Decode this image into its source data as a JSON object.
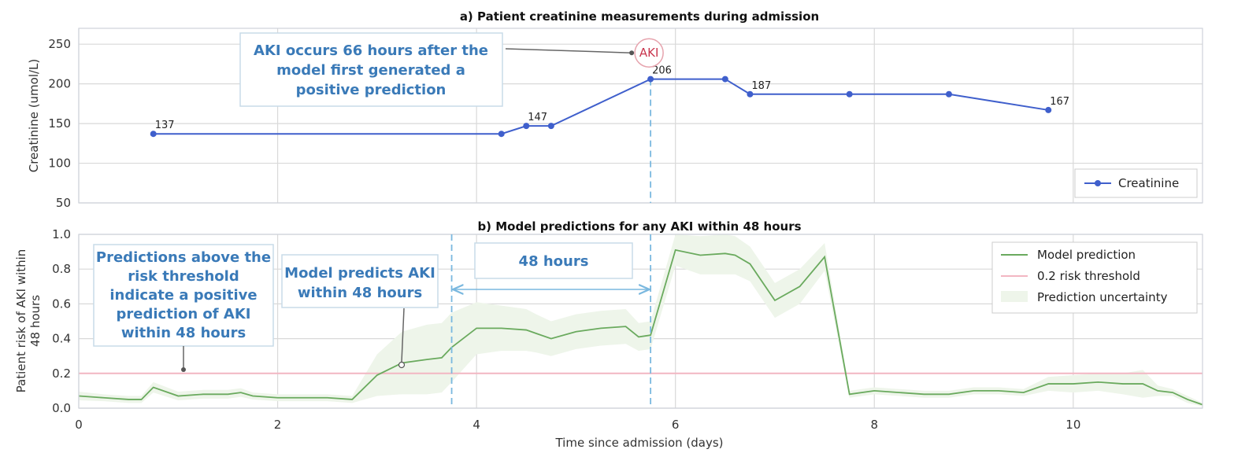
{
  "chart_data": [
    {
      "type": "line",
      "title": "a) Patient creatinine measurements during admission",
      "ylabel": "Creatinine (umol/L)",
      "xlim": [
        0,
        11.3
      ],
      "ylim": [
        50,
        270
      ],
      "yticks": [
        50,
        100,
        150,
        200,
        250
      ],
      "grid": true,
      "legend_position": "bottom-right",
      "series": [
        {
          "name": "Creatinine",
          "color": "#3f5fcc",
          "x": [
            0.75,
            4.25,
            4.5,
            4.75,
            5.75,
            6.5,
            6.75,
            7.75,
            8.75,
            9.75
          ],
          "y": [
            137,
            137,
            147,
            147,
            206,
            206,
            187,
            187,
            187,
            167
          ]
        }
      ],
      "point_labels": [
        {
          "x": 0.75,
          "y": 137,
          "text": "137"
        },
        {
          "x": 4.5,
          "y": 147,
          "text": "147"
        },
        {
          "x": 5.75,
          "y": 206,
          "text": "206"
        },
        {
          "x": 6.75,
          "y": 187,
          "text": "187"
        },
        {
          "x": 9.75,
          "y": 167,
          "text": "167"
        }
      ],
      "aki_marker": {
        "x": 5.75,
        "y": 247,
        "text": "AKI"
      },
      "annotation_text": [
        "AKI occurs 66 hours after the",
        "model first generated a",
        "positive prediction"
      ]
    },
    {
      "type": "line",
      "title": "b) Model predictions for any AKI within 48 hours",
      "ylabel": [
        "Patient risk of AKI within",
        "48 hours"
      ],
      "xlabel": "Time since admission (days)",
      "xlim": [
        0,
        11.3
      ],
      "ylim": [
        0,
        1.0
      ],
      "xticks": [
        0,
        2,
        4,
        6,
        8,
        10
      ],
      "yticks": [
        0.0,
        0.2,
        0.4,
        0.6,
        0.8,
        1.0
      ],
      "grid": true,
      "legend_position": "top-right",
      "series": [
        {
          "name": "Model prediction",
          "color": "#6aaa5e",
          "x": [
            0,
            0.25,
            0.5,
            0.63,
            0.75,
            1.0,
            1.25,
            1.5,
            1.63,
            1.75,
            2.0,
            2.25,
            2.5,
            2.75,
            3.0,
            3.25,
            3.5,
            3.65,
            3.75,
            4.0,
            4.25,
            4.5,
            4.6,
            4.75,
            5.0,
            5.25,
            5.5,
            5.63,
            5.75,
            6.0,
            6.25,
            6.5,
            6.6,
            6.75,
            7.0,
            7.25,
            7.5,
            7.75,
            8.0,
            8.25,
            8.5,
            8.75,
            9.0,
            9.25,
            9.5,
            9.75,
            10.0,
            10.25,
            10.5,
            10.7,
            10.85,
            11.0,
            11.15,
            11.3
          ],
          "y": [
            0.07,
            0.06,
            0.05,
            0.05,
            0.12,
            0.07,
            0.08,
            0.08,
            0.09,
            0.07,
            0.06,
            0.06,
            0.06,
            0.05,
            0.19,
            0.26,
            0.28,
            0.29,
            0.35,
            0.46,
            0.46,
            0.45,
            0.43,
            0.4,
            0.44,
            0.46,
            0.47,
            0.41,
            0.42,
            0.91,
            0.88,
            0.89,
            0.88,
            0.83,
            0.62,
            0.7,
            0.87,
            0.08,
            0.1,
            0.09,
            0.08,
            0.08,
            0.1,
            0.1,
            0.09,
            0.14,
            0.14,
            0.15,
            0.14,
            0.14,
            0.1,
            0.09,
            0.05,
            0.02
          ]
        },
        {
          "name": "0.2 risk threshold",
          "color": "#f2b6c2",
          "x": [
            0,
            11.3
          ],
          "y": [
            0.2,
            0.2
          ]
        },
        {
          "name": "Prediction uncertainty",
          "color": "#eef5ea",
          "band_width": [
            0.025,
            0.02,
            0.02,
            0.02,
            0.03,
            0.025,
            0.025,
            0.025,
            0.025,
            0.02,
            0.02,
            0.02,
            0.02,
            0.02,
            0.12,
            0.18,
            0.2,
            0.2,
            0.2,
            0.15,
            0.13,
            0.12,
            0.11,
            0.1,
            0.1,
            0.1,
            0.1,
            0.08,
            0.08,
            0.09,
            0.11,
            0.12,
            0.11,
            0.1,
            0.1,
            0.1,
            0.08,
            0.02,
            0.02,
            0.02,
            0.02,
            0.02,
            0.02,
            0.02,
            0.02,
            0.04,
            0.05,
            0.05,
            0.06,
            0.08,
            0.03,
            0.02,
            0.02,
            0.01
          ]
        }
      ],
      "vertical_markers": [
        3.75,
        5.75
      ],
      "span_label": "48 hours",
      "annotations": [
        {
          "lines": [
            "Predictions above the",
            "risk threshold",
            "indicate a positive",
            "prediction of AKI",
            "within 48 hours"
          ]
        },
        {
          "lines": [
            "Model predicts AKI",
            "within 48 hours"
          ]
        }
      ]
    }
  ]
}
